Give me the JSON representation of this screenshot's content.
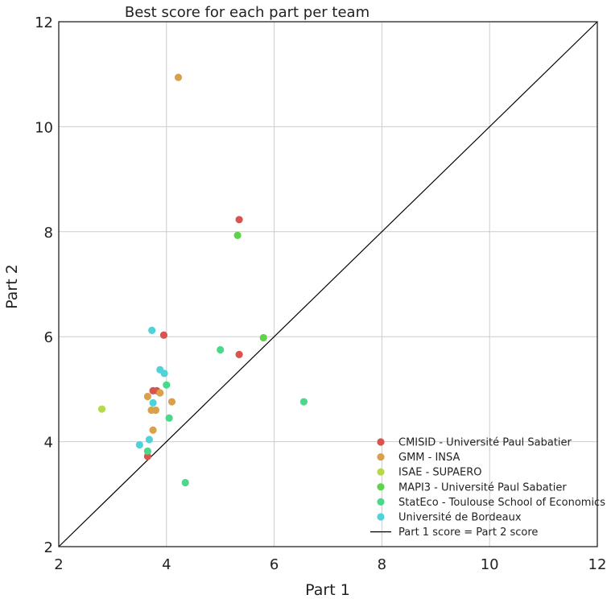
{
  "chart_data": {
    "type": "scatter",
    "title": "Best score for each part per team",
    "xlabel": "Part 1",
    "ylabel": "Part 2",
    "xlim": [
      2,
      12
    ],
    "ylim": [
      2,
      12
    ],
    "xticks": [
      2,
      4,
      6,
      8,
      10,
      12
    ],
    "yticks": [
      2,
      4,
      6,
      8,
      10,
      12
    ],
    "grid": true,
    "legend_position": "bottom-right",
    "reference_line": {
      "label": "Part 1 score = Part 2 score",
      "points": [
        [
          2,
          2
        ],
        [
          12,
          12
        ]
      ],
      "color": "#000000"
    },
    "series": [
      {
        "name": "CMISID - Université Paul Sabatier",
        "color": "#d9534f",
        "points": [
          [
            5.35,
            8.23
          ],
          [
            3.95,
            6.03
          ],
          [
            5.35,
            5.66
          ],
          [
            3.75,
            4.97
          ],
          [
            3.82,
            4.97
          ],
          [
            3.65,
            3.72
          ]
        ]
      },
      {
        "name": "GMM - INSA",
        "color": "#d9a24a",
        "points": [
          [
            4.22,
            10.94
          ],
          [
            3.65,
            4.86
          ],
          [
            3.88,
            4.93
          ],
          [
            4.1,
            4.76
          ],
          [
            3.72,
            4.6
          ],
          [
            3.8,
            4.6
          ],
          [
            3.75,
            4.22
          ]
        ]
      },
      {
        "name": "ISAE - SUPAERO",
        "color": "#b5d94a",
        "points": [
          [
            2.8,
            4.62
          ]
        ]
      },
      {
        "name": "MAPI3 - Université Paul Sabatier",
        "color": "#5fd44a",
        "points": [
          [
            5.32,
            7.93
          ],
          [
            5.8,
            5.98
          ]
        ]
      },
      {
        "name": "StatEco - Toulouse School of Economics",
        "color": "#4ad98a",
        "points": [
          [
            5.0,
            5.75
          ],
          [
            4.0,
            5.08
          ],
          [
            6.55,
            4.76
          ],
          [
            4.05,
            4.45
          ],
          [
            3.65,
            3.82
          ],
          [
            4.35,
            3.22
          ]
        ]
      },
      {
        "name": "Université de Bordeaux",
        "color": "#4fd2da",
        "points": [
          [
            3.73,
            6.12
          ],
          [
            3.88,
            5.37
          ],
          [
            3.96,
            5.3
          ],
          [
            3.75,
            4.74
          ],
          [
            3.68,
            4.04
          ],
          [
            3.5,
            3.94
          ]
        ]
      }
    ]
  }
}
